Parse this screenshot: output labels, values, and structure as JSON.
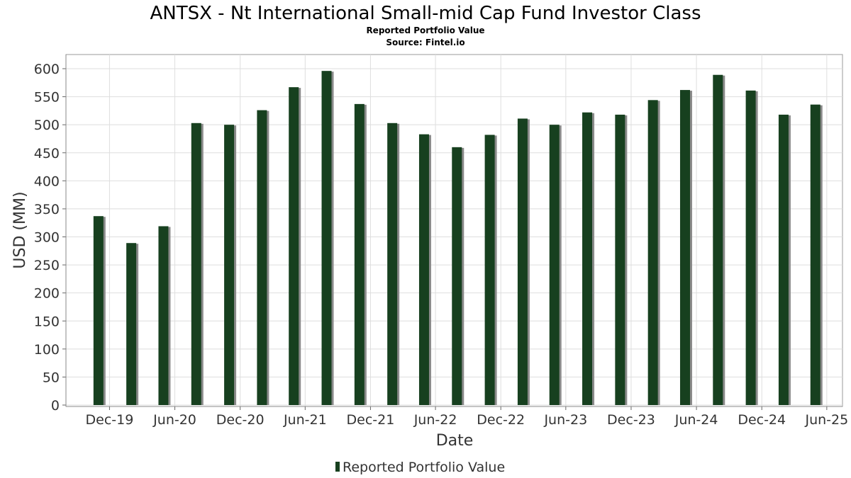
{
  "chart_data": {
    "type": "bar",
    "title": "ANTSX - Nt International Small-mid Cap Fund Investor Class",
    "subtitle": "Reported Portfolio Value",
    "source": "Source: Fintel.io",
    "xlabel": "Date",
    "ylabel": "USD (MM)",
    "ylim": [
      0,
      625
    ],
    "yticks": [
      0,
      50,
      100,
      150,
      200,
      250,
      300,
      350,
      400,
      450,
      500,
      550,
      600
    ],
    "xlim": [
      "2019-08-01",
      "2025-07-15"
    ],
    "xticks": [
      {
        "date": "2019-12-01",
        "label": "Dec-19"
      },
      {
        "date": "2020-06-01",
        "label": "Jun-20"
      },
      {
        "date": "2020-12-01",
        "label": "Dec-20"
      },
      {
        "date": "2021-06-01",
        "label": "Jun-21"
      },
      {
        "date": "2021-12-01",
        "label": "Dec-21"
      },
      {
        "date": "2022-06-01",
        "label": "Jun-22"
      },
      {
        "date": "2022-12-01",
        "label": "Dec-22"
      },
      {
        "date": "2023-06-01",
        "label": "Jun-23"
      },
      {
        "date": "2023-12-01",
        "label": "Dec-23"
      },
      {
        "date": "2024-06-01",
        "label": "Jun-24"
      },
      {
        "date": "2024-12-01",
        "label": "Dec-24"
      },
      {
        "date": "2025-06-01",
        "label": "Jun-25"
      }
    ],
    "grid": true,
    "legend_position": "bottom-center",
    "series": [
      {
        "name": "Reported Portfolio Value",
        "color": "#17401f",
        "shadow_color": "#8a8a8a",
        "points": [
          {
            "date": "2019-10-31",
            "value": 337
          },
          {
            "date": "2020-01-31",
            "value": 289
          },
          {
            "date": "2020-04-30",
            "value": 319
          },
          {
            "date": "2020-07-31",
            "value": 503
          },
          {
            "date": "2020-10-31",
            "value": 500
          },
          {
            "date": "2021-01-31",
            "value": 526
          },
          {
            "date": "2021-04-30",
            "value": 567
          },
          {
            "date": "2021-07-31",
            "value": 596
          },
          {
            "date": "2021-10-31",
            "value": 537
          },
          {
            "date": "2022-01-31",
            "value": 503
          },
          {
            "date": "2022-04-30",
            "value": 483
          },
          {
            "date": "2022-07-31",
            "value": 460
          },
          {
            "date": "2022-10-31",
            "value": 482
          },
          {
            "date": "2023-01-31",
            "value": 511
          },
          {
            "date": "2023-04-30",
            "value": 500
          },
          {
            "date": "2023-07-31",
            "value": 522
          },
          {
            "date": "2023-10-31",
            "value": 518
          },
          {
            "date": "2024-01-31",
            "value": 544
          },
          {
            "date": "2024-04-30",
            "value": 562
          },
          {
            "date": "2024-07-31",
            "value": 589
          },
          {
            "date": "2024-10-31",
            "value": 561
          },
          {
            "date": "2025-01-31",
            "value": 518
          },
          {
            "date": "2025-04-30",
            "value": 536
          }
        ]
      }
    ]
  }
}
